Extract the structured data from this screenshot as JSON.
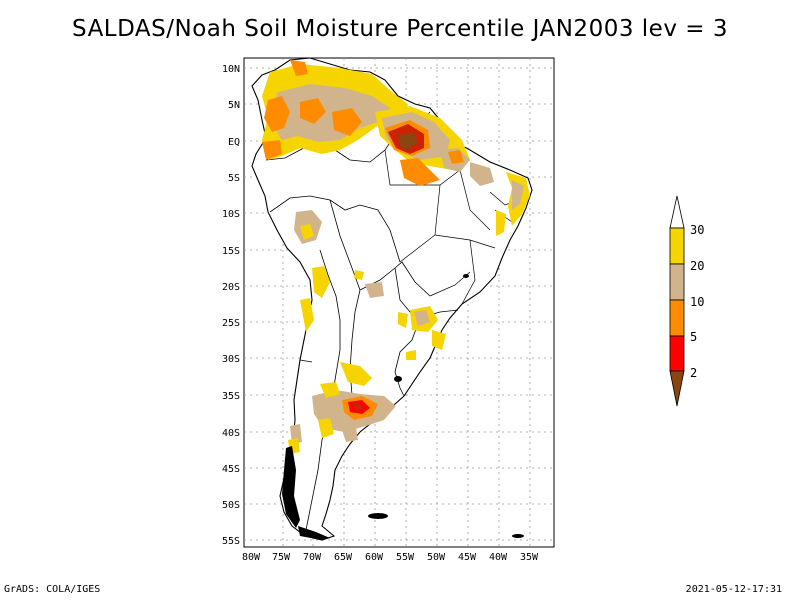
{
  "title": "SALDAS/Noah Soil Moisture Percentile JAN2003 lev = 3",
  "footer_left": "GrADS: COLA/IGES",
  "footer_right": "2021-05-12-17:31",
  "axes": {
    "lon_labels": [
      "80W",
      "75W",
      "70W",
      "65W",
      "60W",
      "55W",
      "50W",
      "45W",
      "40W",
      "35W"
    ],
    "lat_labels": [
      "10N",
      "5N",
      "EQ",
      "5S",
      "10S",
      "15S",
      "20S",
      "25S",
      "30S",
      "35S",
      "40S",
      "45S",
      "50S",
      "55S"
    ]
  },
  "colorbar": {
    "labels": [
      "30",
      "20",
      "10",
      "5",
      "2"
    ],
    "colors": {
      "gold": "#f5d400",
      "tan": "#d2b48c",
      "orange": "#ff8c00",
      "red": "#ff0000",
      "brown": "#8b4513"
    }
  }
}
